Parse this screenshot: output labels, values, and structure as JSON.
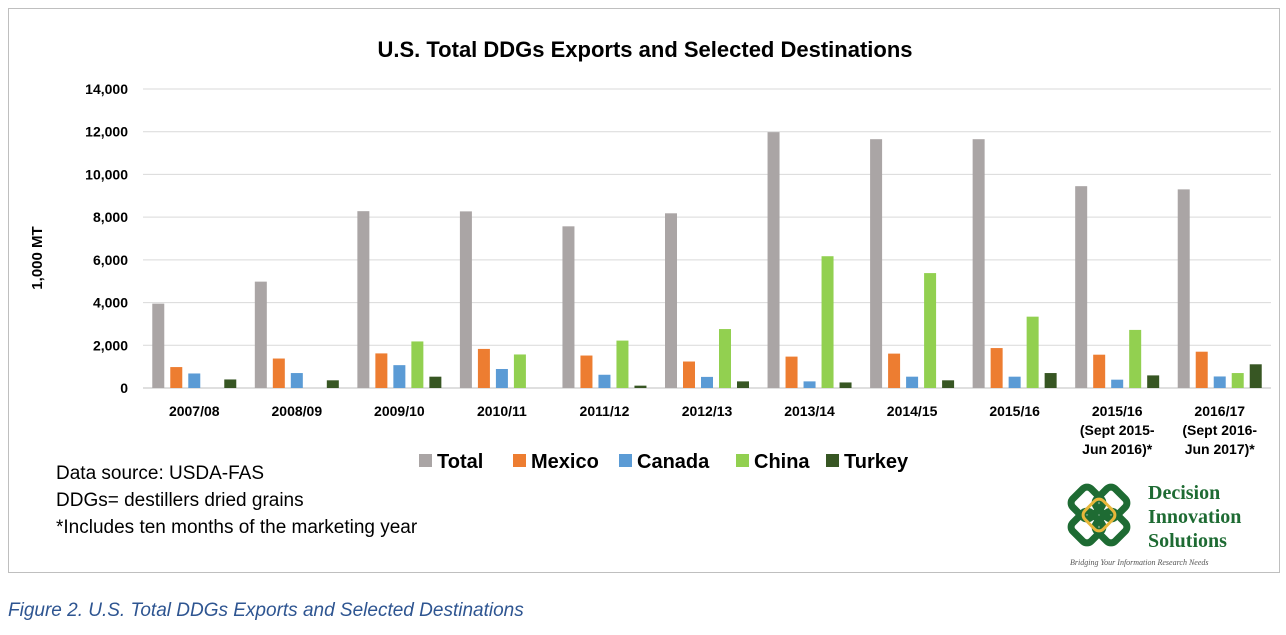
{
  "chart_data": {
    "type": "bar",
    "title": "U.S. Total DDGs Exports and Selected Destinations",
    "ylabel": "1,000 MT",
    "xlabel": "",
    "ylim": [
      0,
      14000
    ],
    "yticks": [
      "0",
      "2,000",
      "4,000",
      "6,000",
      "8,000",
      "10,000",
      "12,000",
      "14,000"
    ],
    "ytick_values": [
      0,
      2000,
      4000,
      6000,
      8000,
      10000,
      12000,
      14000
    ],
    "grid": true,
    "legend_position": "bottom",
    "categories": [
      [
        "2007/08"
      ],
      [
        "2008/09"
      ],
      [
        "2009/10"
      ],
      [
        "2010/11"
      ],
      [
        "2011/12"
      ],
      [
        "2012/13"
      ],
      [
        "2013/14"
      ],
      [
        "2014/15"
      ],
      [
        "2015/16"
      ],
      [
        "2015/16",
        "(Sept 2015-",
        "Jun 2016)*"
      ],
      [
        "2016/17",
        "(Sept 2016-",
        "Jun 2017)*"
      ]
    ],
    "series": [
      {
        "name": "Total",
        "color": "#aaa5a5",
        "values": [
          3950,
          4980,
          8280,
          8270,
          7570,
          8180,
          11980,
          11650,
          11650,
          9450,
          9300
        ]
      },
      {
        "name": "Mexico",
        "color": "#ed7d31",
        "values": [
          980,
          1380,
          1620,
          1830,
          1520,
          1240,
          1470,
          1610,
          1870,
          1560,
          1700
        ]
      },
      {
        "name": "Canada",
        "color": "#5b9bd5",
        "values": [
          680,
          700,
          1070,
          890,
          620,
          520,
          310,
          530,
          530,
          390,
          540
        ]
      },
      {
        "name": "China",
        "color": "#92d050",
        "values": [
          0,
          0,
          2180,
          1570,
          2220,
          2760,
          6170,
          5380,
          3340,
          2720,
          700
        ]
      },
      {
        "name": "Turkey",
        "color": "#375623",
        "values": [
          400,
          360,
          530,
          0,
          110,
          310,
          260,
          360,
          700,
          590,
          1110
        ]
      }
    ]
  },
  "notes": [
    "Data source: USDA-FAS",
    "DDGs= destillers dried grains",
    "*Includes ten months of the marketing year"
  ],
  "logo": {
    "line1": "Decision",
    "line2": "Innovation",
    "line3": "Solutions",
    "tagline": "Bridging Your Information Research Needs"
  },
  "caption": "Figure 2. U.S. Total DDGs Exports and Selected Destinations"
}
